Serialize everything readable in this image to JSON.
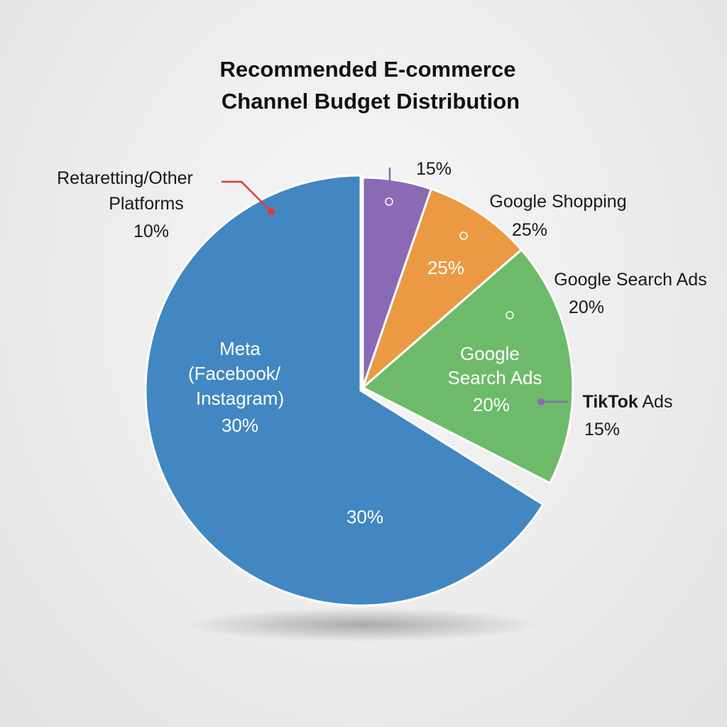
{
  "chart_data": {
    "type": "pie",
    "title": [
      "Recommended E-commerce",
      "Channel Budget Distribution"
    ],
    "slices": [
      {
        "name": "TikTok Ads",
        "value": 15,
        "label": "15%",
        "color": "#8a6ab5"
      },
      {
        "name": "Google Shopping",
        "value": 25,
        "label": "25%",
        "color": "#eb9a43"
      },
      {
        "name": "Google Search Ads",
        "value": 20,
        "label": "20%",
        "color": "#6dbb6a"
      },
      {
        "name": "Meta (Facebook/ Instagram)",
        "value": 30,
        "label": "30%",
        "color": "#4287c1"
      },
      {
        "name": "Retaretting/Other Platforms",
        "value": 10,
        "label": "10%",
        "color": "#4287c1"
      }
    ],
    "outside_labels": {
      "retargeting": [
        "Retaretting/Other",
        "Platforms",
        "10%"
      ],
      "tiktok_pct": "15%",
      "google_shopping": [
        "Google Shopping",
        "25%"
      ],
      "google_search": [
        "Google Search Ads",
        "20%"
      ],
      "tiktok": {
        "bold": "TikTok",
        "rest": " Ads",
        "pct": "15%"
      }
    },
    "inside_labels": {
      "google_shopping": "25%",
      "google_search": [
        "Google",
        "Search Ads",
        "20%"
      ],
      "meta": [
        "Meta",
        "(Facebook/",
        "Instagram)",
        "30%"
      ],
      "bottom": "30%"
    },
    "leader_colors": {
      "red": "#e03a3a",
      "purple": "#8a6ab5",
      "green": "#6dbb6a"
    }
  }
}
